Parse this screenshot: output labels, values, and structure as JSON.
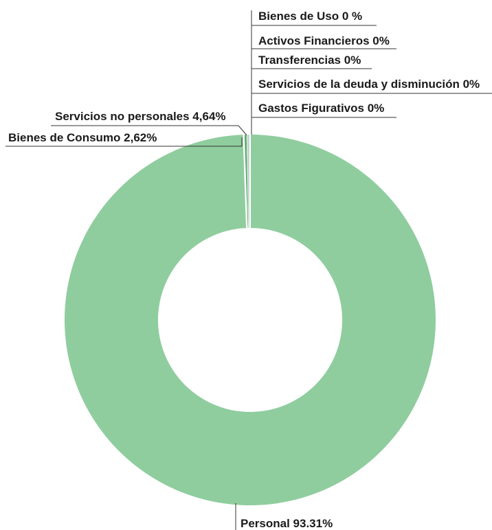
{
  "chart_data": {
    "type": "pie",
    "donut": true,
    "categories": [
      "Personal",
      "Bienes de Consumo",
      "Servicios no personales",
      "Bienes de Uso",
      "Activos Financieros",
      "Transferencias",
      "Servicios de la deuda y disminución",
      "Gastos Figurativos"
    ],
    "values": [
      93.31,
      2.62,
      4.64,
      0,
      0,
      0,
      0,
      0
    ],
    "data_labels": [
      "Personal 93.31%",
      "Bienes de Consumo 2,62%",
      "Servicios no personales 4,64%",
      "Bienes de Uso 0 %",
      "Activos Financieros 0%",
      "Transferencias 0%",
      "Servicios de la deuda y disminución 0%",
      "Gastos Figurativos 0%"
    ],
    "colors": {
      "Personal": "#8fcd9e",
      "Bienes de Consumo": "#4fae63",
      "Servicios no personales": "#c9d1cf",
      "separator": "#ffffff"
    },
    "legend": "none"
  }
}
